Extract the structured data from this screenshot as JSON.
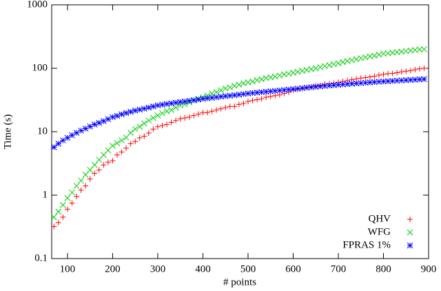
{
  "chart_data": {
    "type": "scatter",
    "xlabel": "# points",
    "ylabel": "Time (s)",
    "ylog": true,
    "legend": "bottom-right",
    "xlim": [
      65,
      900
    ],
    "xticks": [
      100,
      200,
      300,
      400,
      500,
      600,
      700,
      800,
      900
    ],
    "ylim": [
      0.1,
      1000
    ],
    "yticks": [
      0.1,
      1,
      10,
      100,
      1000
    ],
    "x": [
      70,
      80,
      90,
      100,
      110,
      120,
      130,
      140,
      150,
      160,
      170,
      180,
      190,
      200,
      210,
      220,
      230,
      240,
      250,
      260,
      270,
      280,
      290,
      300,
      310,
      320,
      330,
      340,
      350,
      360,
      370,
      380,
      390,
      400,
      410,
      420,
      430,
      440,
      450,
      460,
      470,
      480,
      490,
      500,
      510,
      520,
      530,
      540,
      550,
      560,
      570,
      580,
      590,
      600,
      610,
      620,
      630,
      640,
      650,
      660,
      670,
      680,
      690,
      700,
      710,
      720,
      730,
      740,
      750,
      760,
      770,
      780,
      790,
      800,
      810,
      820,
      830,
      840,
      850,
      860,
      870,
      880,
      890
    ],
    "series": [
      {
        "name": "QHV",
        "color": "#ff0000",
        "marker": "plus",
        "values": [
          0.32,
          0.37,
          0.45,
          0.6,
          0.75,
          0.95,
          1.2,
          1.4,
          1.8,
          2.2,
          2.5,
          3.0,
          3.3,
          3.5,
          4.3,
          4.8,
          5.5,
          6.5,
          7,
          8,
          8.5,
          9.5,
          11,
          12,
          12.5,
          13,
          14,
          15,
          16,
          16.5,
          17,
          18,
          19,
          20,
          20,
          21,
          22,
          23,
          24,
          25,
          25,
          27,
          28,
          30,
          31,
          32,
          33,
          35,
          36,
          37,
          38,
          40,
          42,
          45,
          46,
          48,
          50,
          51,
          53,
          54,
          56,
          57,
          58,
          60,
          62,
          64,
          66,
          68,
          70,
          71,
          73,
          75,
          78,
          80,
          82,
          83,
          85,
          88,
          90,
          92,
          95,
          98,
          100
        ]
      },
      {
        "name": "WFG",
        "color": "#00cc00",
        "marker": "x",
        "values": [
          0.45,
          0.55,
          0.7,
          0.9,
          1.1,
          1.4,
          1.7,
          2.1,
          2.5,
          3.0,
          3.6,
          4.3,
          5.1,
          6,
          6.6,
          7.3,
          8.1,
          9.6,
          11,
          12,
          13.5,
          15,
          16.5,
          18,
          19.5,
          21,
          22,
          24,
          26,
          27,
          29,
          31,
          33,
          35,
          37,
          40,
          42,
          45,
          48,
          50,
          53,
          55,
          58,
          60,
          62,
          65,
          67,
          70,
          72,
          74,
          77,
          80,
          82,
          85,
          88,
          91,
          94,
          97,
          100,
          104,
          108,
          112,
          116,
          120,
          125,
          130,
          134,
          139,
          144,
          149,
          154,
          158,
          164,
          170,
          172,
          176,
          180,
          183,
          186,
          190,
          194,
          197,
          200
        ]
      },
      {
        "name": "FPRAS 1%",
        "color": "#0000ff",
        "marker": "star",
        "values": [
          5.7,
          6.5,
          7.3,
          8.0,
          8.8,
          9.6,
          10.4,
          11.2,
          12.1,
          13,
          13.8,
          14.7,
          15.8,
          17,
          17.8,
          18.8,
          19.7,
          20.6,
          21.5,
          22.3,
          23.1,
          24,
          25,
          26,
          26.7,
          27.4,
          28,
          28.7,
          29.4,
          30,
          30.7,
          31.4,
          32.2,
          33,
          33.6,
          34.3,
          35,
          35.7,
          36.4,
          37,
          37.7,
          38.4,
          39.2,
          40,
          40.7,
          41.4,
          42,
          42.7,
          43.4,
          44,
          44.7,
          45.4,
          46.2,
          47,
          47.8,
          48.6,
          49.4,
          50.2,
          51,
          51.8,
          52.6,
          53.4,
          54.2,
          55,
          55.7,
          56.4,
          57.1,
          57.8,
          58.5,
          59.2,
          59.9,
          60.6,
          61.3,
          62,
          62.6,
          63.2,
          63.8,
          64.4,
          65,
          65.6,
          66.2,
          66.8,
          67.4
        ]
      }
    ]
  }
}
